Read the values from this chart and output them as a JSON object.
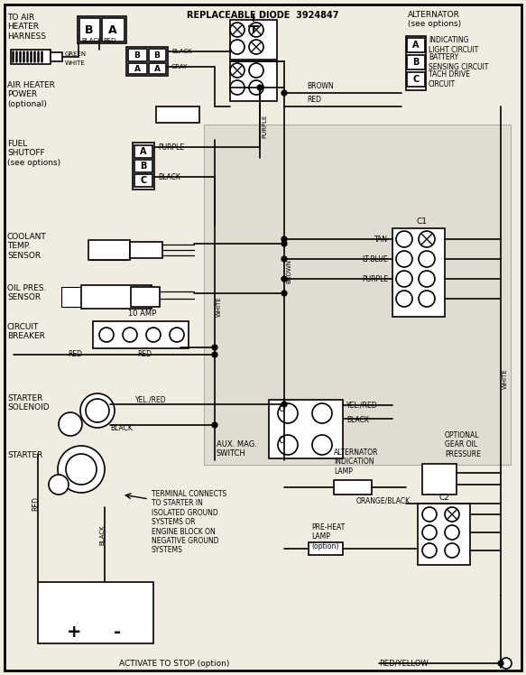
{
  "bg_color": "#f0ede0",
  "line_color": "#000000",
  "text_color": "#000000",
  "components": {
    "air_heater_harness_label": "TO AIR\nHEATER\nHARNESS",
    "air_heater_power_label": "AIR HEATER\nPOWER\n(optional)",
    "fuel_shutoff_label": "FUEL\nSHUTOFF\n(see options)",
    "coolant_sensor_label": "COOLANT\nTEMP.\nSENSOR",
    "oil_sensor_label": "OIL PRES.\nSENSOR",
    "circuit_breaker_label": "CIRCUIT\nBREAKER",
    "starter_solenoid_label": "STARTER\nSOLENOID",
    "starter_label": "STARTER",
    "alternator_label": "ALTERNATOR\n(see options)",
    "replaceable_diode_label": "REPLACEABLE DIODE  3924847",
    "aux_mag_switch_label": "AUX. MAG.\nSWITCH",
    "alternator_lamp_label": "ALTERNATOR\nINDICATION\nLAMP",
    "pre_heat_lamp_label": "PRE-HEAT\nLAMP\n(option)",
    "gear_oil_label": "OPTIONAL\nGEAR OIL\nPRESSURE",
    "terminal_note": "TERMINAL CONNECTS\nTO STARTER IN\nISOLATED GROUND\nSYSTEMS OR\nENGINE BLOCK ON\nNEGATIVE GROUND\nSYSTEMS",
    "activate_label": "ACTIVATE TO STOP (option)",
    "10amp_label": "10 AMP",
    "c1_label": "C1",
    "c2_label": "C2"
  },
  "alternator_circuits": {
    "a": "INDICATING\nLIGHT CIRCUIT",
    "b": "BATTERY\nSENSING CIRCUIT",
    "c": "TACH DRIVE\nCIRCUIT"
  }
}
